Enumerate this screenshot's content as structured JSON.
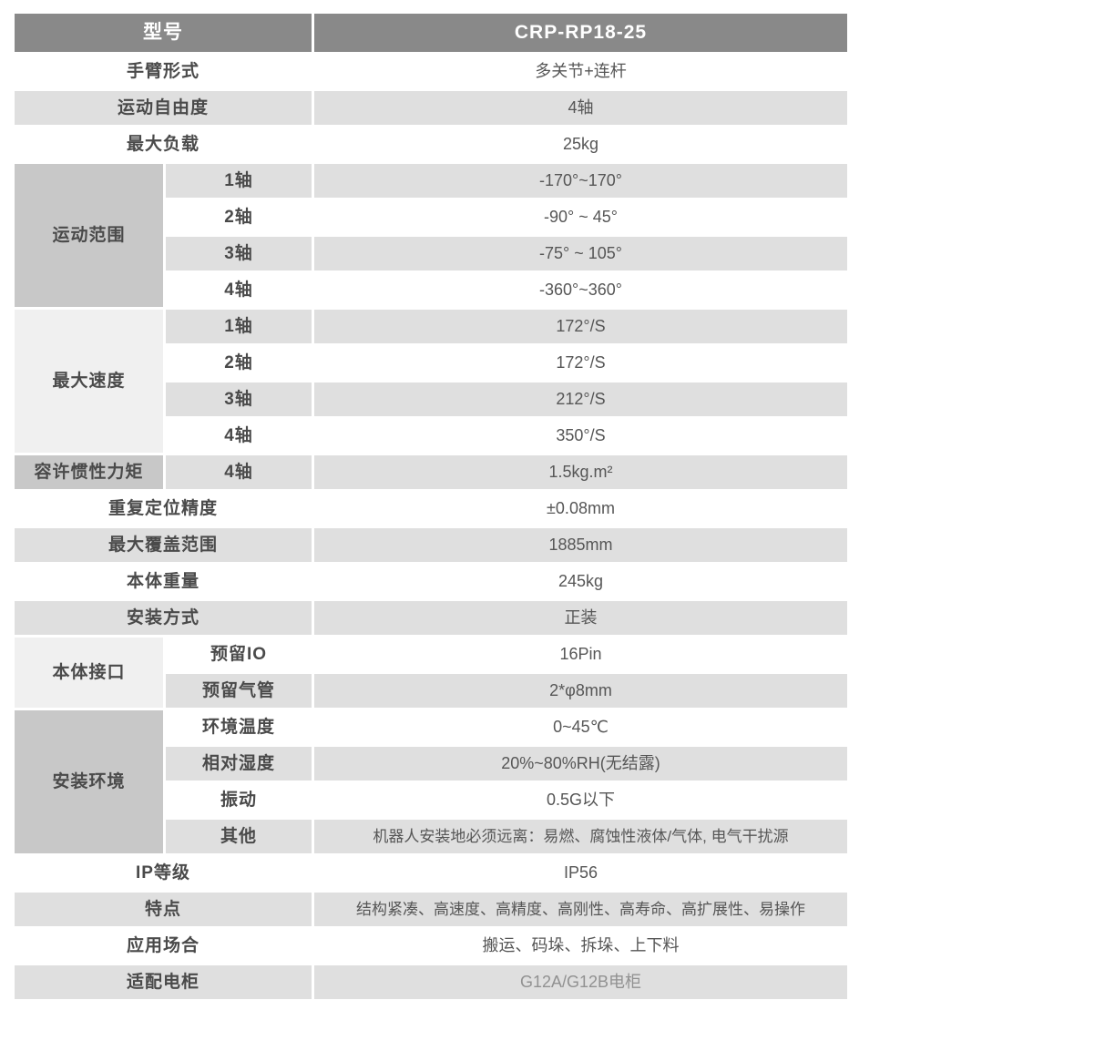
{
  "table": {
    "model_label": "型号",
    "model_value": "CRP-RP18-25",
    "colors": {
      "header_bg": "#898989",
      "header_text": "#ffffff",
      "stripe_gray": "#dfdfdf",
      "group_dark": "#c8c8c8",
      "group_light": "#f0f0f0",
      "label_text": "#4a4a4a",
      "value_text": "#565656",
      "value_muted": "#919191"
    },
    "rows": [
      {
        "label": "手臂形式",
        "value": "多关节+连杆",
        "shade": "white"
      },
      {
        "label": "运动自由度",
        "value": "4轴",
        "shade": "gray"
      },
      {
        "label": "最大负载",
        "value": "25kg",
        "shade": "white"
      },
      {
        "group": "运动范围",
        "group_span": 4,
        "group_tone": "dark",
        "sub": "1轴",
        "value": "-170°~170°",
        "shade": "gray"
      },
      {
        "sub": "2轴",
        "value": "-90° ~ 45°",
        "shade": "white"
      },
      {
        "sub": "3轴",
        "value": "-75° ~ 105°",
        "shade": "gray"
      },
      {
        "sub": "4轴",
        "value": "-360°~360°",
        "shade": "white"
      },
      {
        "group": "最大速度",
        "group_span": 4,
        "group_tone": "light",
        "sub": "1轴",
        "value": "172°/S",
        "shade": "gray"
      },
      {
        "sub": "2轴",
        "value": "172°/S",
        "shade": "white"
      },
      {
        "sub": "3轴",
        "value": "212°/S",
        "shade": "gray"
      },
      {
        "sub": "4轴",
        "value": "350°/S",
        "shade": "white"
      },
      {
        "group": "容许惯性力矩",
        "group_span": 1,
        "group_tone": "dark",
        "sub": "4轴",
        "value": "1.5kg.m²",
        "shade": "gray"
      },
      {
        "label": "重复定位精度",
        "value": "±0.08mm",
        "shade": "white"
      },
      {
        "label": "最大覆盖范围",
        "value": "1885mm",
        "shade": "gray"
      },
      {
        "label": "本体重量",
        "value": "245kg",
        "shade": "white"
      },
      {
        "label": "安装方式",
        "value": "正装",
        "shade": "gray"
      },
      {
        "group": "本体接口",
        "group_span": 2,
        "group_tone": "light",
        "sub": "预留IO",
        "value": "16Pin",
        "shade": "white"
      },
      {
        "sub": "预留气管",
        "value": "2*φ8mm",
        "shade": "gray"
      },
      {
        "group": "安装环境",
        "group_span": 4,
        "group_tone": "dark",
        "sub": "环境温度",
        "value": "0~45℃",
        "shade": "white"
      },
      {
        "sub": "相对湿度",
        "value": "20%~80%RH(无结露)",
        "shade": "gray"
      },
      {
        "sub": "振动",
        "value": "0.5G以下",
        "shade": "white"
      },
      {
        "sub": "其他",
        "value": "机器人安装地必须远离：易燃、腐蚀性液体/气体, 电气干扰源",
        "shade": "gray",
        "long": true
      },
      {
        "label": "IP等级",
        "value": "IP56",
        "shade": "white"
      },
      {
        "label": "特点",
        "value": "结构紧凑、高速度、高精度、高刚性、高寿命、高扩展性、易操作",
        "shade": "gray",
        "long": true
      },
      {
        "label": "应用场合",
        "value": "搬运、码垛、拆垛、上下料",
        "shade": "white"
      },
      {
        "label": "适配电柜",
        "value": "G12A/G12B电柜",
        "shade": "gray",
        "muted": true
      }
    ]
  }
}
